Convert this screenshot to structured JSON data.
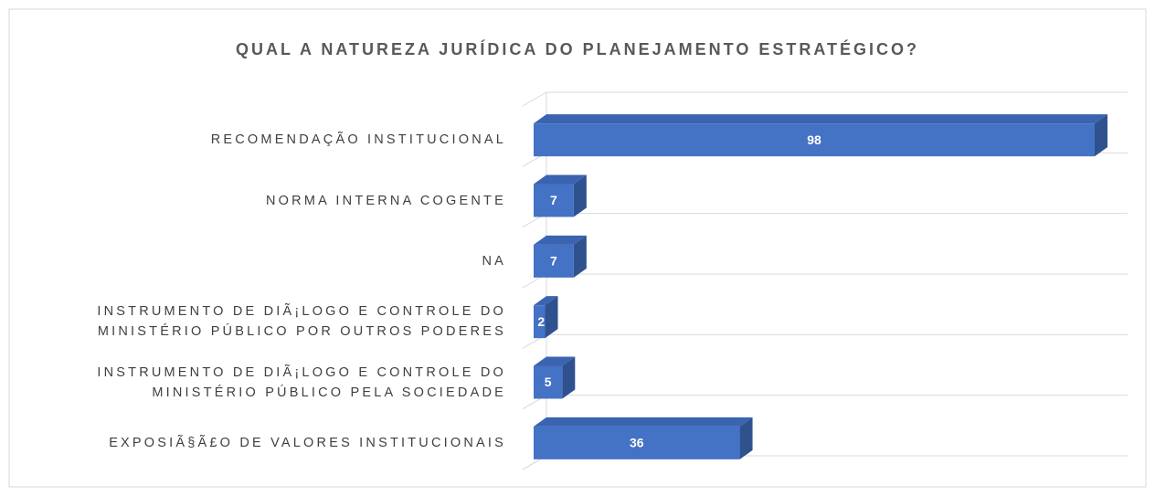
{
  "chart_data": {
    "type": "bar3d",
    "title": "QUAL A NATUREZA JURÍDICA DO PLANEJAMENTO ESTRATÉGICO?",
    "categories": [
      "RECOMENDAÇÃO  INSTITUCIONAL",
      "NORMA INTERNA COGENTE",
      "NA",
      "INSTRUMENTO DE DIÃ¡LOGO E CONTROLE DO MINISTÉRIO PÚBLICO POR OUTROS PODERES",
      "INSTRUMENTO DE DIÃ¡LOGO E CONTROLE DO MINISTÉRIO PÚBLICO PELA SOCIEDADE",
      "EXPOSIÃ§Ã£O DE VALORES INSTITUCIONAIS"
    ],
    "values": [
      98,
      7,
      7,
      2,
      5,
      36
    ],
    "color": "#4472c4",
    "grid": true
  }
}
